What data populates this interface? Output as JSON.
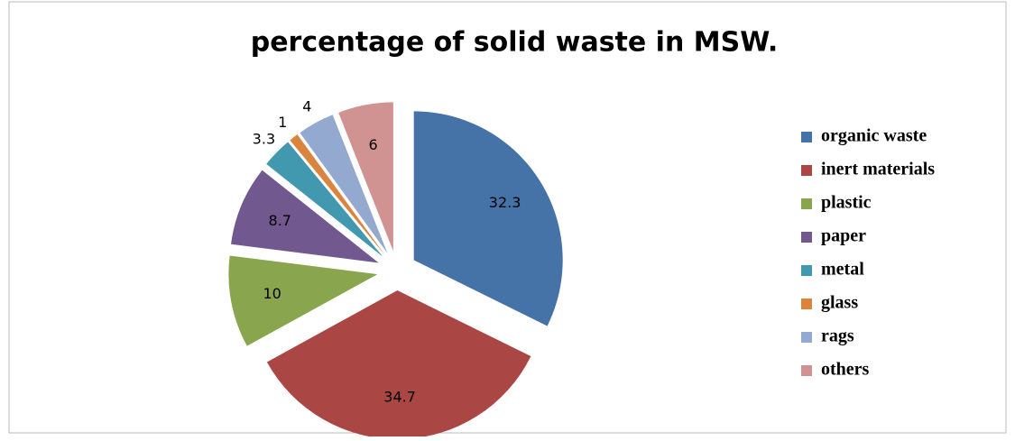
{
  "chart_data": {
    "type": "pie",
    "title": "percentage of solid waste in MSW.",
    "categories": [
      "organic waste",
      "inert materials",
      "plastic",
      "paper",
      "metal",
      "glass",
      "rags",
      "others"
    ],
    "values": [
      32.3,
      34.7,
      10,
      8.7,
      3.3,
      1,
      4,
      6
    ],
    "colors": [
      "#4572a7",
      "#aa4643",
      "#89a54e",
      "#71588f",
      "#4198af",
      "#db843d",
      "#93a9cf",
      "#d19392"
    ],
    "legend": "right"
  }
}
